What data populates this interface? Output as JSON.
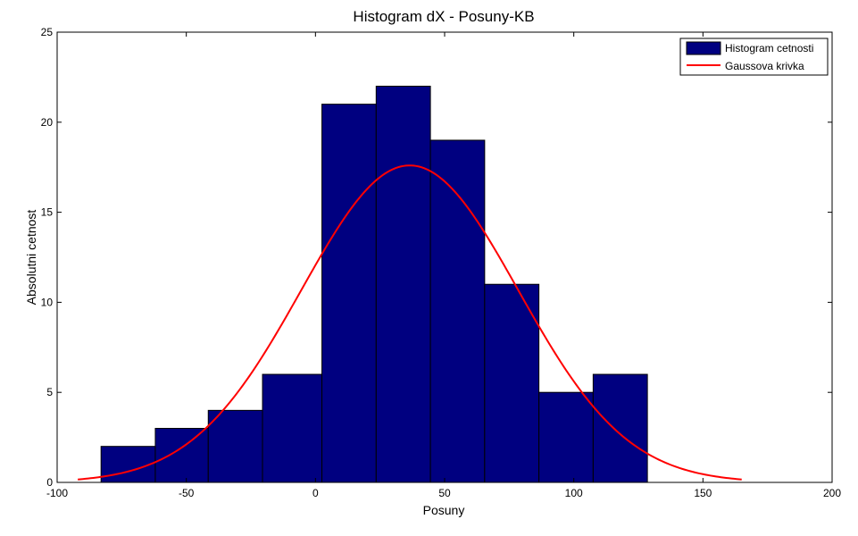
{
  "chart_data": {
    "type": "bar",
    "title": "Histogram dX - Posuny-KB",
    "xlabel": "Posuny",
    "ylabel": "Absolutni cetnost",
    "xlim": [
      -100,
      200
    ],
    "ylim": [
      0,
      25
    ],
    "xticks": [
      -100,
      -50,
      0,
      50,
      100,
      150,
      200
    ],
    "yticks": [
      0,
      5,
      10,
      15,
      20,
      25
    ],
    "grid": false,
    "legend_position": "top-right",
    "bar_color": "#000080",
    "line_color": "#ff0000",
    "bins": [
      {
        "x0": -83.0,
        "x1": -62.0,
        "value": 2
      },
      {
        "x0": -62.0,
        "x1": -41.5,
        "value": 3
      },
      {
        "x0": -41.5,
        "x1": -20.5,
        "value": 4
      },
      {
        "x0": -20.5,
        "x1": 2.5,
        "value": 6
      },
      {
        "x0": 2.5,
        "x1": 23.5,
        "value": 21
      },
      {
        "x0": 23.5,
        "x1": 44.5,
        "value": 22
      },
      {
        "x0": 44.5,
        "x1": 65.5,
        "value": 19
      },
      {
        "x0": 65.5,
        "x1": 86.5,
        "value": 11
      },
      {
        "x0": 86.5,
        "x1": 107.5,
        "value": 5
      },
      {
        "x0": 107.5,
        "x1": 128.5,
        "value": 6
      }
    ],
    "series": [
      {
        "name": "Histogram cetnosti",
        "type": "bar"
      },
      {
        "name": "Gaussova krivka",
        "type": "line",
        "mean": 36.5,
        "sd": 42.0,
        "peak": 17.6,
        "x_range": [
          -92,
          165
        ]
      }
    ]
  }
}
